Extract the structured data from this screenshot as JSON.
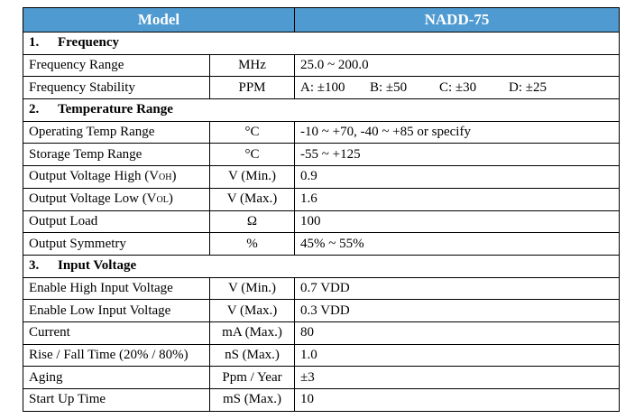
{
  "header": {
    "model": "Model",
    "product": "NADD-75"
  },
  "rows": [
    {
      "number": "1.",
      "title": "Frequency"
    },
    {
      "parameter": "Frequency Range",
      "unit": "MHz",
      "value": "25.0 ~ 200.0"
    },
    {
      "parameter": "Frequency Stability",
      "unit": "PPM",
      "value": [
        "A: ±100",
        "B: ±50",
        "C: ±30",
        "D: ±25"
      ]
    },
    {
      "number": "2.",
      "title": "Temperature Range"
    },
    {
      "parameter": "Operating Temp Range",
      "unit": "°C",
      "value": "-10 ~ +70, -40 ~ +85 or specify"
    },
    {
      "parameter": "Storage Temp Range",
      "unit": "°C",
      "value": "-55 ~ +125"
    },
    {
      "parameter": [
        "Output Voltage High (V",
        "OH",
        ")"
      ],
      "unit": "V (Min.)",
      "value": "0.9"
    },
    {
      "parameter": [
        "Output Voltage Low (V",
        "OL",
        ")"
      ],
      "unit": "V (Max.)",
      "value": "1.6"
    },
    {
      "parameter": "Output Load",
      "unit": "Ω",
      "value": "100"
    },
    {
      "parameter": "Output Symmetry",
      "unit": "%",
      "value": "45% ~ 55%"
    },
    {
      "number": "3.",
      "title": "Input Voltage"
    },
    {
      "parameter": "Enable High Input Voltage",
      "unit": "V (Min.)",
      "value": "0.7 VDD"
    },
    {
      "parameter": "Enable Low Input Voltage",
      "unit": "V (Max.)",
      "value": "0.3 VDD"
    },
    {
      "parameter": "Current",
      "unit": "mA (Max.)",
      "value": "80"
    },
    {
      "parameter": "Rise / Fall Time (20% / 80%)",
      "unit": "nS (Max.)",
      "value": "1.0"
    },
    {
      "parameter": "Aging",
      "unit": "Ppm / Year",
      "value": "±3"
    },
    {
      "parameter": "Start Up Time",
      "unit": "mS (Max.)",
      "value": "10"
    }
  ]
}
